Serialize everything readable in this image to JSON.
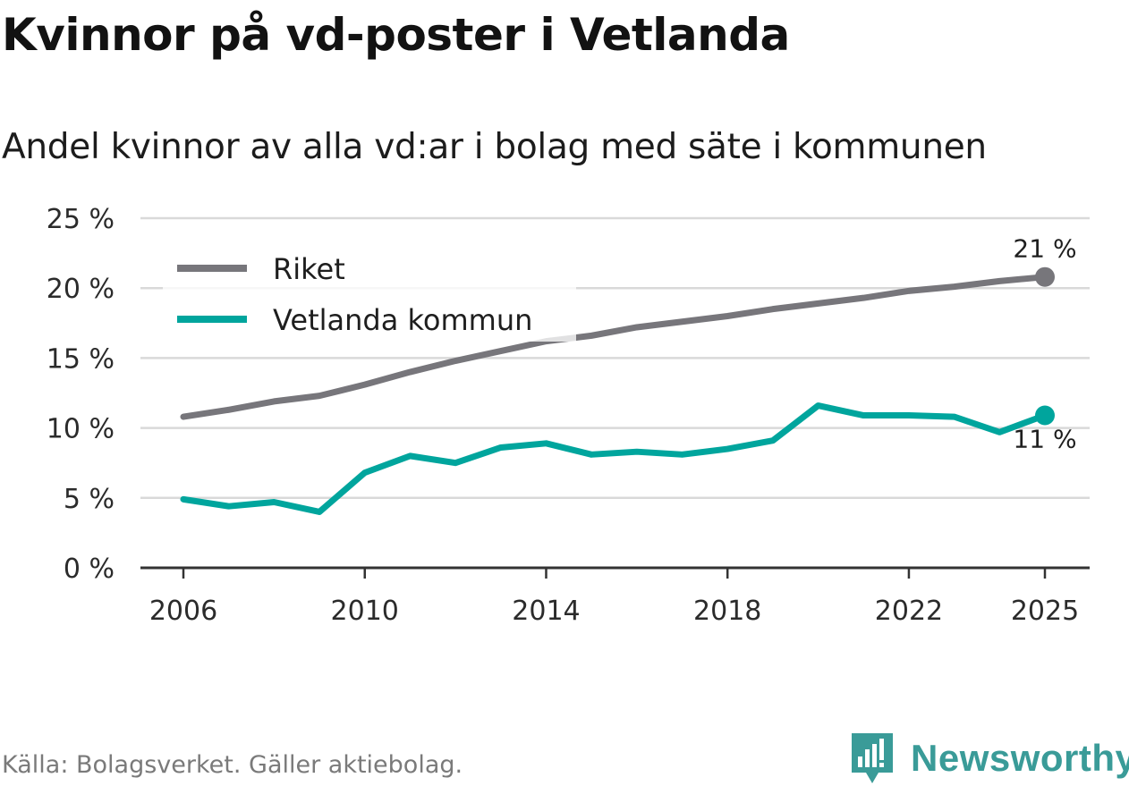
{
  "header": {
    "title": "Kvinnor på vd-poster i Vetlanda",
    "subtitle": "Andel kvinnor av alla vd:ar i bolag med säte i kommunen"
  },
  "footer": {
    "source": "Källa: Bolagsverket. Gäller aktiebolag.",
    "brand": "Newsworthy",
    "brand_color": "#3a9b98"
  },
  "chart_data": {
    "type": "line",
    "title": "Kvinnor på vd-poster i Vetlanda",
    "subtitle": "Andel kvinnor av alla vd:ar i bolag med säte i kommunen",
    "xlabel": "",
    "ylabel": "",
    "x": [
      2006,
      2007,
      2008,
      2009,
      2010,
      2011,
      2012,
      2013,
      2014,
      2015,
      2016,
      2017,
      2018,
      2019,
      2020,
      2021,
      2022,
      2023,
      2024,
      2025
    ],
    "xlim": [
      2005,
      2026
    ],
    "ylim": [
      0,
      25
    ],
    "x_ticks": [
      2006,
      2010,
      2014,
      2018,
      2022,
      2025
    ],
    "x_tick_labels": [
      "2006",
      "2010",
      "2014",
      "2018",
      "2022",
      "2025"
    ],
    "y_ticks": [
      0,
      5,
      10,
      15,
      20,
      25
    ],
    "y_tick_labels": [
      "0 %",
      "5 %",
      "10 %",
      "15 %",
      "20 %",
      "25 %"
    ],
    "grid": true,
    "legend_position": "top-left",
    "series": [
      {
        "name": "Riket",
        "color": "#77767b",
        "values": [
          10.8,
          11.3,
          11.9,
          12.3,
          13.1,
          14.0,
          14.8,
          15.5,
          16.2,
          16.6,
          17.2,
          17.6,
          18.0,
          18.5,
          18.9,
          19.3,
          19.8,
          20.1,
          20.5,
          20.8
        ],
        "end_label": "21 %"
      },
      {
        "name": "Vetlanda kommun",
        "color": "#00a59d",
        "values": [
          4.9,
          4.4,
          4.7,
          4.0,
          6.8,
          8.0,
          7.5,
          8.6,
          8.9,
          8.1,
          8.3,
          8.1,
          8.5,
          9.1,
          11.6,
          10.9,
          10.9,
          10.8,
          9.7,
          10.9
        ],
        "end_label": "11 %"
      }
    ]
  }
}
